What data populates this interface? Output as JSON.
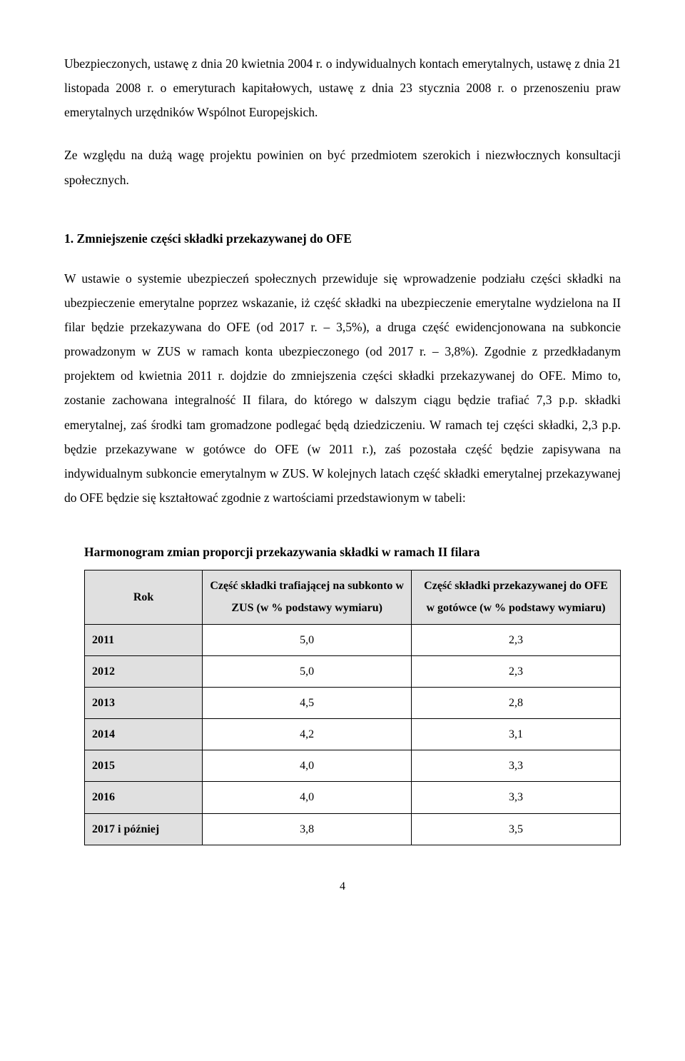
{
  "intro": {
    "p1": "Ubezpieczonych, ustawę z dnia 20 kwietnia 2004 r. o indywidualnych kontach emerytalnych, ustawę z dnia 21 listopada 2008 r. o emeryturach kapitałowych, ustawę z dnia 23 stycznia 2008 r. o przenoszeniu praw emerytalnych urzędników Wspólnot Europejskich.",
    "p2": "Ze względu na dużą wagę projektu powinien on być przedmiotem szerokich i niezwłocznych konsultacji społecznych."
  },
  "section1": {
    "heading": "1. Zmniejszenie części składki przekazywanej do OFE",
    "body": "W ustawie o systemie ubezpieczeń społecznych przewiduje się wprowadzenie podziału części składki na ubezpieczenie emerytalne poprzez wskazanie, iż część składki na ubezpieczenie emerytalne wydzielona na II filar będzie przekazywana do OFE (od 2017 r. – 3,5%), a druga część ewidencjonowana na subkoncie prowadzonym w ZUS w ramach konta ubezpieczonego (od 2017 r. – 3,8%). Zgodnie z przedkładanym projektem od kwietnia 2011 r. dojdzie do zmniejszenia części składki przekazywanej do OFE. Mimo to, zostanie zachowana integralność II filara, do którego w dalszym ciągu będzie trafiać 7,3 p.p. składki emerytalnej, zaś środki tam gromadzone podlegać będą dziedziczeniu. W ramach tej części składki, 2,3 p.p. będzie przekazywane w gotówce do OFE (w 2011 r.), zaś pozostała część będzie zapisywana na indywidualnym subkoncie emerytalnym w ZUS. W kolejnych latach część składki emerytalnej przekazywanej do OFE będzie się kształtować zgodnie z wartościami przedstawionym w tabeli:"
  },
  "table": {
    "title": "Harmonogram zmian proporcji przekazywania składki w ramach II filara",
    "columns": [
      "Rok",
      "Część składki trafiającej na subkonto w ZUS (w % podstawy wymiaru)",
      "Część składki przekazywanej do OFE w gotówce (w % podstawy wymiaru)"
    ],
    "rows": [
      {
        "year": "2011",
        "zus": "5,0",
        "ofe": "2,3"
      },
      {
        "year": "2012",
        "zus": "5,0",
        "ofe": "2,3"
      },
      {
        "year": "2013",
        "zus": "4,5",
        "ofe": "2,8"
      },
      {
        "year": "2014",
        "zus": "4,2",
        "ofe": "3,1"
      },
      {
        "year": "2015",
        "zus": "4,0",
        "ofe": "3,3"
      },
      {
        "year": "2016",
        "zus": "4,0",
        "ofe": "3,3"
      },
      {
        "year": "2017 i później",
        "zus": "3,8",
        "ofe": "3,5"
      }
    ]
  },
  "page_number": "4"
}
